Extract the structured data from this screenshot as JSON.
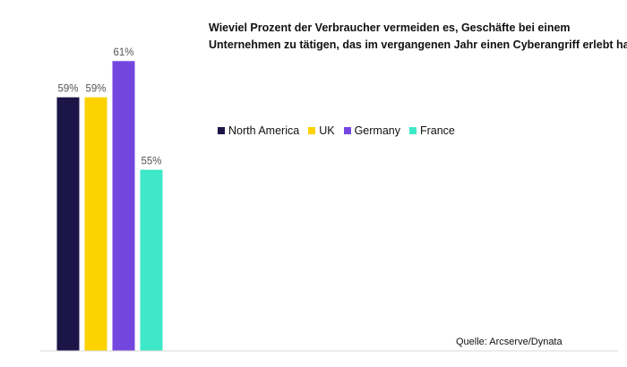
{
  "chart_data": {
    "type": "bar",
    "title": [
      "Wieviel Prozent der Verbraucher vermeiden es, Geschäfte bei einem",
      "Unternehmen zu tätigen, das im vergangenen Jahr einen Cyberangriff erlebt hat?"
    ],
    "categories": [
      "North America",
      "UK",
      "Germany",
      "France"
    ],
    "values": [
      59,
      59,
      61,
      55
    ],
    "value_labels": [
      "59%",
      "59%",
      "61%",
      "55%"
    ],
    "colors": [
      "#1c1548",
      "#fcd200",
      "#7446e0",
      "#3ee8c8"
    ],
    "ylim": [
      45,
      62
    ],
    "grid": false,
    "legend_position": "right",
    "source": "Quelle: Arcserve/Dynata"
  }
}
